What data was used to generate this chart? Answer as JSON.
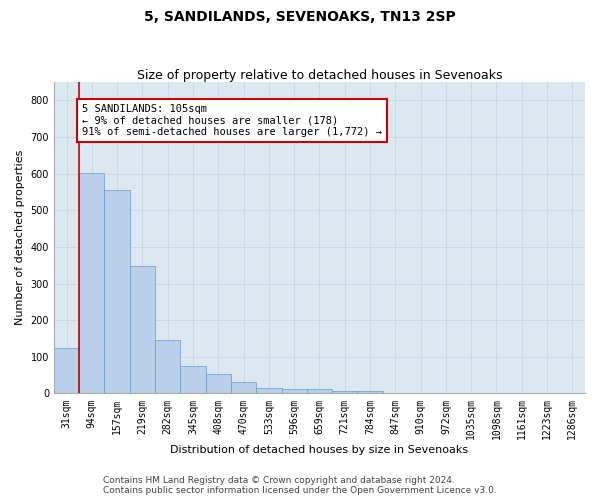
{
  "title": "5, SANDILANDS, SEVENOAKS, TN13 2SP",
  "subtitle": "Size of property relative to detached houses in Sevenoaks",
  "xlabel": "Distribution of detached houses by size in Sevenoaks",
  "ylabel": "Number of detached properties",
  "categories": [
    "31sqm",
    "94sqm",
    "157sqm",
    "219sqm",
    "282sqm",
    "345sqm",
    "408sqm",
    "470sqm",
    "533sqm",
    "596sqm",
    "659sqm",
    "721sqm",
    "784sqm",
    "847sqm",
    "910sqm",
    "972sqm",
    "1035sqm",
    "1098sqm",
    "1161sqm",
    "1223sqm",
    "1286sqm"
  ],
  "values": [
    125,
    603,
    554,
    347,
    147,
    76,
    52,
    30,
    15,
    13,
    13,
    7,
    8,
    0,
    0,
    0,
    0,
    0,
    0,
    0,
    0
  ],
  "bar_color": "#b8d0ea",
  "bar_edge_color": "#6699cc",
  "annotation_text_line1": "5 SANDILANDS: 105sqm",
  "annotation_text_line2": "← 9% of detached houses are smaller (178)",
  "annotation_text_line3": "91% of semi-detached houses are larger (1,772) →",
  "annotation_box_color": "#ffffff",
  "annotation_box_edge_color": "#cc0000",
  "vline_color": "#cc0000",
  "ylim": [
    0,
    850
  ],
  "yticks": [
    0,
    100,
    200,
    300,
    400,
    500,
    600,
    700,
    800
  ],
  "grid_color": "#c8d8e8",
  "bg_color": "#dce8f0",
  "footer_line1": "Contains HM Land Registry data © Crown copyright and database right 2024.",
  "footer_line2": "Contains public sector information licensed under the Open Government Licence v3.0.",
  "title_fontsize": 10,
  "subtitle_fontsize": 9,
  "label_fontsize": 8,
  "tick_fontsize": 7,
  "annotation_fontsize": 7.5,
  "footer_fontsize": 6.5
}
